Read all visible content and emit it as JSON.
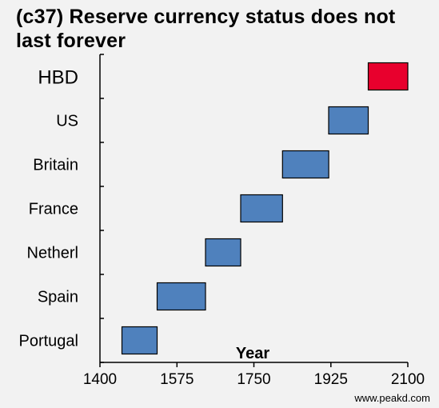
{
  "title": "(c37) Reserve currency status does not last forever",
  "watermark": "www.peakd.com",
  "chart_data": {
    "type": "bar",
    "subtype": "floating-range (timeline)",
    "orientation": "horizontal",
    "title": "(c37) Reserve currency status does not last forever",
    "xlabel": "Year",
    "ylabel": "",
    "xlim": [
      1400,
      2100
    ],
    "xticks": [
      1400,
      1575,
      1750,
      1925,
      2100
    ],
    "grid": false,
    "legend": "none",
    "categories": [
      "Portugal",
      "Spain",
      "Netherl",
      "France",
      "Britain",
      "US",
      "HBD"
    ],
    "ranges": [
      {
        "label": "Portugal",
        "start": 1450,
        "end": 1530,
        "color": "#4f81bd"
      },
      {
        "label": "Spain",
        "start": 1530,
        "end": 1640,
        "color": "#4f81bd"
      },
      {
        "label": "Netherl",
        "start": 1640,
        "end": 1720,
        "color": "#4f81bd"
      },
      {
        "label": "France",
        "start": 1720,
        "end": 1815,
        "color": "#4f81bd"
      },
      {
        "label": "Britain",
        "start": 1815,
        "end": 1920,
        "color": "#4f81bd"
      },
      {
        "label": "US",
        "start": 1920,
        "end": 2010,
        "color": "#4f81bd"
      },
      {
        "label": "HBD",
        "start": 2010,
        "end": 2100,
        "color": "#e8002d"
      }
    ]
  }
}
